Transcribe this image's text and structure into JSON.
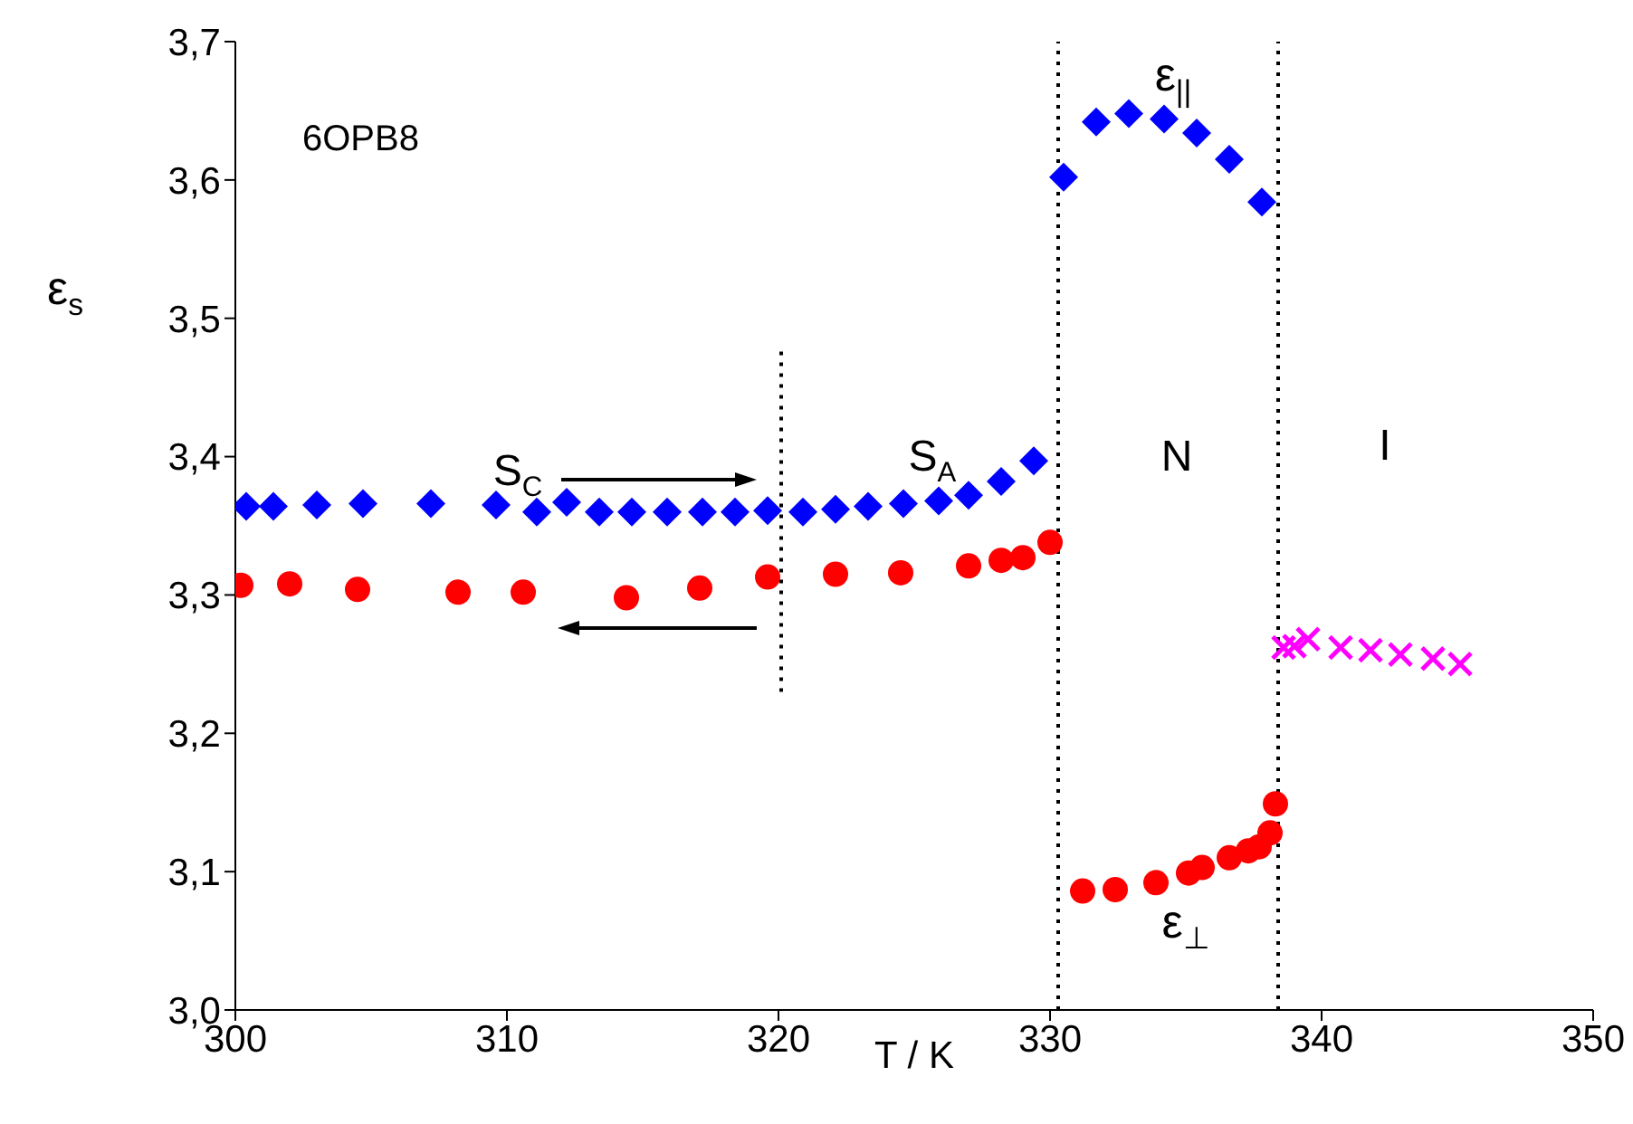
{
  "chart_data": {
    "type": "scatter",
    "xlabel": "T / K",
    "ylabel": "ε$_{s}$",
    "xlim": [
      300,
      350
    ],
    "xticks": [
      300,
      310,
      320,
      330,
      340,
      350
    ],
    "ylim": [
      3.0,
      3.7
    ],
    "yticks": [
      {
        "value": 3.0,
        "label": "3,0"
      },
      {
        "value": 3.1,
        "label": "3,1"
      },
      {
        "value": 3.2,
        "label": "3,2"
      },
      {
        "value": 3.3,
        "label": "3,3"
      },
      {
        "value": 3.4,
        "label": "3,4"
      },
      {
        "value": 3.5,
        "label": "3,5"
      },
      {
        "value": 3.6,
        "label": "3,6"
      },
      {
        "value": 3.7,
        "label": "3,7"
      }
    ],
    "series": [
      {
        "marker": "diamond",
        "color": "#0000ff",
        "x": [
          300.4,
          301.4,
          303.0,
          304.7,
          307.2,
          309.6,
          311.1,
          312.2,
          313.4,
          314.6,
          315.9,
          317.2,
          318.4,
          319.6,
          320.9,
          322.1,
          323.3,
          324.6,
          325.9,
          327.0,
          328.2,
          329.4,
          330.5,
          331.7,
          332.9,
          334.2,
          335.4,
          336.6,
          337.8
        ],
        "values": [
          3.364,
          3.364,
          3.365,
          3.366,
          3.366,
          3.365,
          3.36,
          3.367,
          3.36,
          3.36,
          3.36,
          3.36,
          3.36,
          3.361,
          3.36,
          3.362,
          3.364,
          3.366,
          3.368,
          3.372,
          3.382,
          3.397,
          3.602,
          3.642,
          3.648,
          3.644,
          3.634,
          3.615,
          3.584
        ]
      },
      {
        "marker": "circle",
        "color": "#ff0000",
        "x": [
          300.2,
          302.0,
          304.5,
          308.2,
          310.6,
          314.4,
          317.1,
          319.6,
          322.1,
          324.5,
          327.0,
          328.2,
          329.0,
          330.0,
          331.2,
          332.4,
          333.9,
          335.1,
          335.6,
          336.6,
          337.3,
          337.7,
          338.1,
          338.3
        ],
        "values": [
          3.307,
          3.308,
          3.304,
          3.302,
          3.302,
          3.298,
          3.305,
          3.313,
          3.315,
          3.316,
          3.321,
          3.325,
          3.327,
          3.338,
          3.086,
          3.087,
          3.092,
          3.099,
          3.103,
          3.11,
          3.115,
          3.118,
          3.128,
          3.149
        ]
      },
      {
        "marker": "cross",
        "color": "#ff00ff",
        "x": [
          338.6,
          339.0,
          339.5,
          340.7,
          341.8,
          342.9,
          344.1,
          345.1
        ],
        "values": [
          3.262,
          3.263,
          3.268,
          3.262,
          3.26,
          3.257,
          3.254,
          3.25
        ]
      },
      {
        "type": "line",
        "marker": "none",
        "line_style": "dotted",
        "color": "#000000",
        "x": [
          320.1,
          320.1
        ],
        "values": [
          3.23,
          3.48
        ]
      }
    ],
    "ref_lines": [
      {
        "axis": "x",
        "value": 330.3,
        "line_style": "dotted",
        "color": "#000000"
      },
      {
        "axis": "x",
        "value": 338.4,
        "line_style": "dotted",
        "color": "#000000"
      }
    ],
    "annotations": [
      "6OPB8",
      "S$_{C}$",
      "S$_{A}$",
      "N",
      "I",
      "ε$_{||}$",
      "ε$_{⊥}$"
    ]
  }
}
